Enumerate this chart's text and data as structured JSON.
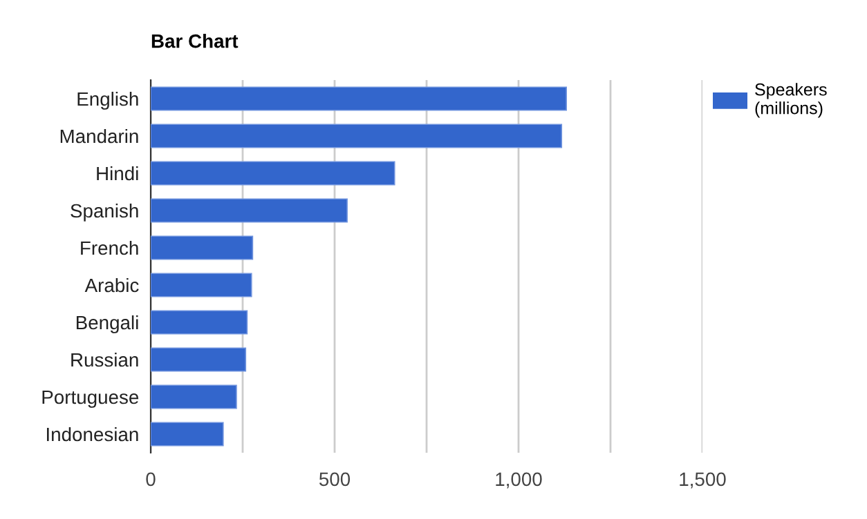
{
  "chart_data": {
    "type": "bar",
    "orientation": "horizontal",
    "title": "Bar Chart",
    "categories": [
      "English",
      "Mandarin",
      "Hindi",
      "Spanish",
      "French",
      "Arabic",
      "Bengali",
      "Russian",
      "Portuguese",
      "Indonesian"
    ],
    "series": [
      {
        "name": "Speakers (millions)",
        "color": "#3366cc",
        "values": [
          1130,
          1117,
          663,
          534,
          277,
          274,
          262,
          258,
          233,
          197
        ]
      }
    ],
    "xlim": [
      0,
      1500
    ],
    "xticks": [
      0,
      {
        "value": 250,
        "label": null
      },
      500,
      {
        "value": 750,
        "label": null
      },
      {
        "value": 1000,
        "label": "1,000"
      },
      {
        "value": 1250,
        "label": null
      },
      {
        "value": 1500,
        "label": "1,500"
      }
    ],
    "grid": "x",
    "legend": "top right"
  }
}
